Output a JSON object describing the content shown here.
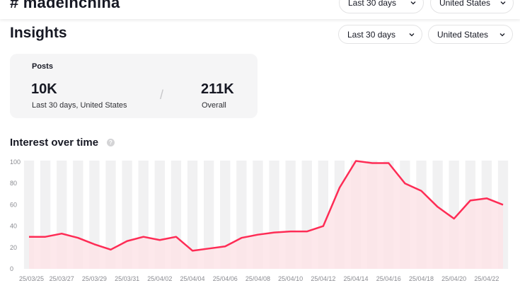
{
  "header": {
    "hashtag": "# madeinchina",
    "date_filter": "Last 30 days",
    "region_filter": "United States"
  },
  "insights": {
    "title": "Insights",
    "date_filter": "Last 30 days",
    "region_filter": "United States"
  },
  "posts_card": {
    "label": "Posts",
    "value": "10K",
    "subtitle": "Last 30 days, United States",
    "separator": "/",
    "overall_value": "211K",
    "overall_label": "Overall"
  },
  "interest": {
    "title": "Interest over time",
    "help_glyph": "?"
  },
  "colors": {
    "line": "#fe2c55",
    "fill": "#fde4e8",
    "column": "#f1f1f2"
  },
  "chart_data": {
    "type": "area",
    "x": [
      "25/03/25",
      "25/03/26",
      "25/03/27",
      "25/03/28",
      "25/03/29",
      "25/03/30",
      "25/03/31",
      "25/04/01",
      "25/04/02",
      "25/04/03",
      "25/04/04",
      "25/04/05",
      "25/04/06",
      "25/04/07",
      "25/04/08",
      "25/04/09",
      "25/04/10",
      "25/04/11",
      "25/04/12",
      "25/04/13",
      "25/04/14",
      "25/04/15",
      "25/04/16",
      "25/04/17",
      "25/04/18",
      "25/04/19",
      "25/04/20",
      "25/04/21",
      "25/04/22",
      "25/04/23"
    ],
    "tick_labels": [
      "25/03/25",
      "25/03/27",
      "25/03/29",
      "25/03/31",
      "25/04/02",
      "25/04/04",
      "25/04/06",
      "25/04/08",
      "25/04/10",
      "25/04/12",
      "25/04/14",
      "25/04/16",
      "25/04/18",
      "25/04/20",
      "25/04/22"
    ],
    "values": [
      30,
      30,
      33,
      29,
      23,
      18,
      26,
      30,
      27,
      30,
      17,
      19,
      21,
      29,
      32,
      34,
      35,
      35,
      40,
      76,
      101,
      99,
      99,
      80,
      73,
      58,
      47,
      64,
      66,
      60
    ],
    "ylim": [
      0,
      100
    ],
    "yticks": [
      0,
      20,
      40,
      60,
      80,
      100
    ],
    "grid": true
  }
}
